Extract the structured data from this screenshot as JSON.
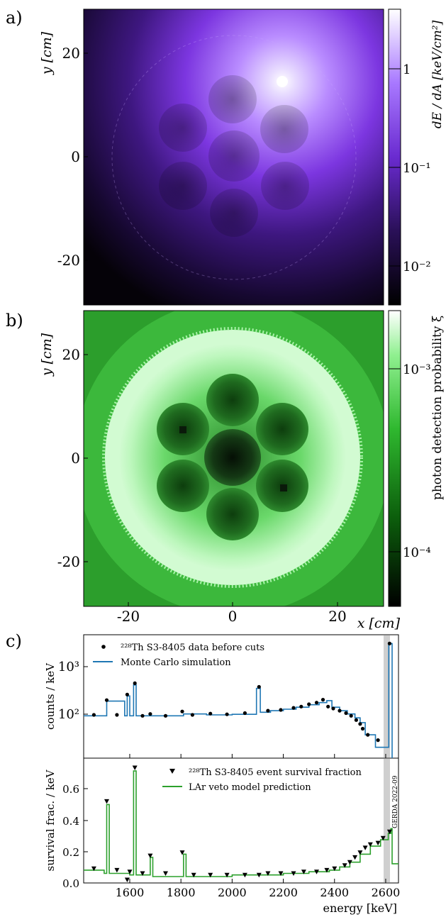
{
  "panel_labels": [
    "a)",
    "b)",
    "c)"
  ],
  "chart_data": [
    {
      "type": "heatmap",
      "panel": "a)",
      "ylabel": "y [cm]",
      "xlim": [
        -28,
        28
      ],
      "ylim": [
        -28,
        28
      ],
      "yticks": [
        -20,
        0,
        20
      ],
      "colorbar": {
        "label": "dE / dA [keV/cm²]",
        "scale": "log",
        "ticks": [
          "10⁻²",
          "10⁻¹",
          "1"
        ],
        "colormap": [
          "#000000",
          "#3a1870",
          "#8a3cf0",
          "#c9a8ff",
          "#ffffff"
        ]
      }
    },
    {
      "type": "heatmap",
      "panel": "b)",
      "ylabel": "y [cm]",
      "xlabel": "x [cm]",
      "xlim": [
        -28,
        28
      ],
      "ylim": [
        -28,
        28
      ],
      "xticks": [
        -20,
        0,
        20
      ],
      "yticks": [
        -20,
        0,
        20
      ],
      "colorbar": {
        "label": "photon detection probability ξ",
        "scale": "log",
        "ticks": [
          "10⁻⁴",
          "10⁻³"
        ],
        "colormap": [
          "#000000",
          "#0a4a0a",
          "#25b525",
          "#8af08a",
          "#ffffff"
        ]
      }
    },
    {
      "type": "line",
      "panel": "c) top",
      "ylabel": "counts / keV",
      "scale": "log",
      "ylim": [
        15,
        5000
      ],
      "xlim": [
        1420,
        2650
      ],
      "yticks": [
        "10²",
        "10³"
      ],
      "legend_position": "top-left",
      "series": [
        {
          "name": "²²⁸Th S3-8405 data before cuts",
          "marker": "dot",
          "x": [
            1460,
            1510,
            1550,
            1590,
            1620,
            1650,
            1680,
            1740,
            1805,
            1845,
            1915,
            1980,
            2050,
            2105,
            2140,
            2190,
            2240,
            2270,
            2300,
            2330,
            2355,
            2375,
            2395,
            2420,
            2445,
            2465,
            2485,
            2500,
            2510,
            2530,
            2570,
            2615
          ],
          "y": [
            115,
            230,
            115,
            300,
            510,
            110,
            120,
            110,
            135,
            115,
            122,
            118,
            125,
            430,
            140,
            145,
            160,
            170,
            190,
            205,
            235,
            170,
            155,
            140,
            125,
            110,
            90,
            75,
            60,
            45,
            35,
            3300
          ]
        },
        {
          "name": "Monte Carlo simulation",
          "color": "#1f77b4",
          "x": [
            1420,
            1500,
            1510,
            1580,
            1590,
            1600,
            1615,
            1625,
            1700,
            1800,
            1810,
            1900,
            2000,
            2095,
            2110,
            2150,
            2200,
            2250,
            2300,
            2340,
            2370,
            2390,
            2420,
            2450,
            2480,
            2500,
            2520,
            2560,
            2605,
            2612,
            2620,
            2625
          ],
          "y": [
            110,
            110,
            220,
            110,
            280,
            110,
            470,
            110,
            110,
            110,
            120,
            115,
            118,
            400,
            130,
            140,
            150,
            165,
            185,
            205,
            225,
            165,
            140,
            120,
            100,
            80,
            45,
            25,
            25,
            3300,
            3300,
            10
          ]
        }
      ]
    },
    {
      "type": "line",
      "panel": "c) bottom",
      "xlabel": "energy [keV]",
      "ylabel": "survival frac. / keV",
      "xlim": [
        1420,
        2650
      ],
      "ylim": [
        0.0,
        0.78
      ],
      "xticks": [
        1600,
        1800,
        2000,
        2200,
        2400,
        2600
      ],
      "yticks": [
        "0.0",
        "0.2",
        "0.4",
        "0.6"
      ],
      "legend_position": "top-center",
      "annotation": "GERDA 2022-09",
      "series": [
        {
          "name": "²²⁸Th S3-8405 event survival fraction",
          "marker": "triangle-down",
          "x": [
            1460,
            1510,
            1550,
            1590,
            1600,
            1620,
            1650,
            1680,
            1740,
            1805,
            1850,
            1915,
            1980,
            2050,
            2105,
            2140,
            2190,
            2240,
            2280,
            2330,
            2370,
            2400,
            2440,
            2460,
            2480,
            2500,
            2520,
            2540,
            2570,
            2590,
            2615
          ],
          "y": [
            0.09,
            0.51,
            0.08,
            0.02,
            0.07,
            0.72,
            0.06,
            0.17,
            0.06,
            0.19,
            0.05,
            0.05,
            0.05,
            0.05,
            0.05,
            0.06,
            0.06,
            0.06,
            0.07,
            0.07,
            0.08,
            0.09,
            0.11,
            0.13,
            0.16,
            0.19,
            0.22,
            0.24,
            0.25,
            0.28,
            0.32
          ]
        },
        {
          "name": "LAr veto model prediction",
          "color": "#2ca02c",
          "x": [
            1420,
            1470,
            1500,
            1510,
            1520,
            1600,
            1615,
            1625,
            1670,
            1680,
            1690,
            1800,
            1810,
            1820,
            2000,
            2100,
            2200,
            2300,
            2380,
            2420,
            2460,
            2500,
            2540,
            2580,
            2610,
            2620,
            2625,
            2650
          ],
          "y": [
            0.08,
            0.08,
            0.06,
            0.49,
            0.06,
            0.05,
            0.7,
            0.05,
            0.05,
            0.16,
            0.04,
            0.04,
            0.18,
            0.04,
            0.05,
            0.05,
            0.06,
            0.07,
            0.08,
            0.1,
            0.13,
            0.18,
            0.23,
            0.27,
            0.31,
            0.34,
            0.12,
            0.12
          ]
        }
      ]
    }
  ]
}
